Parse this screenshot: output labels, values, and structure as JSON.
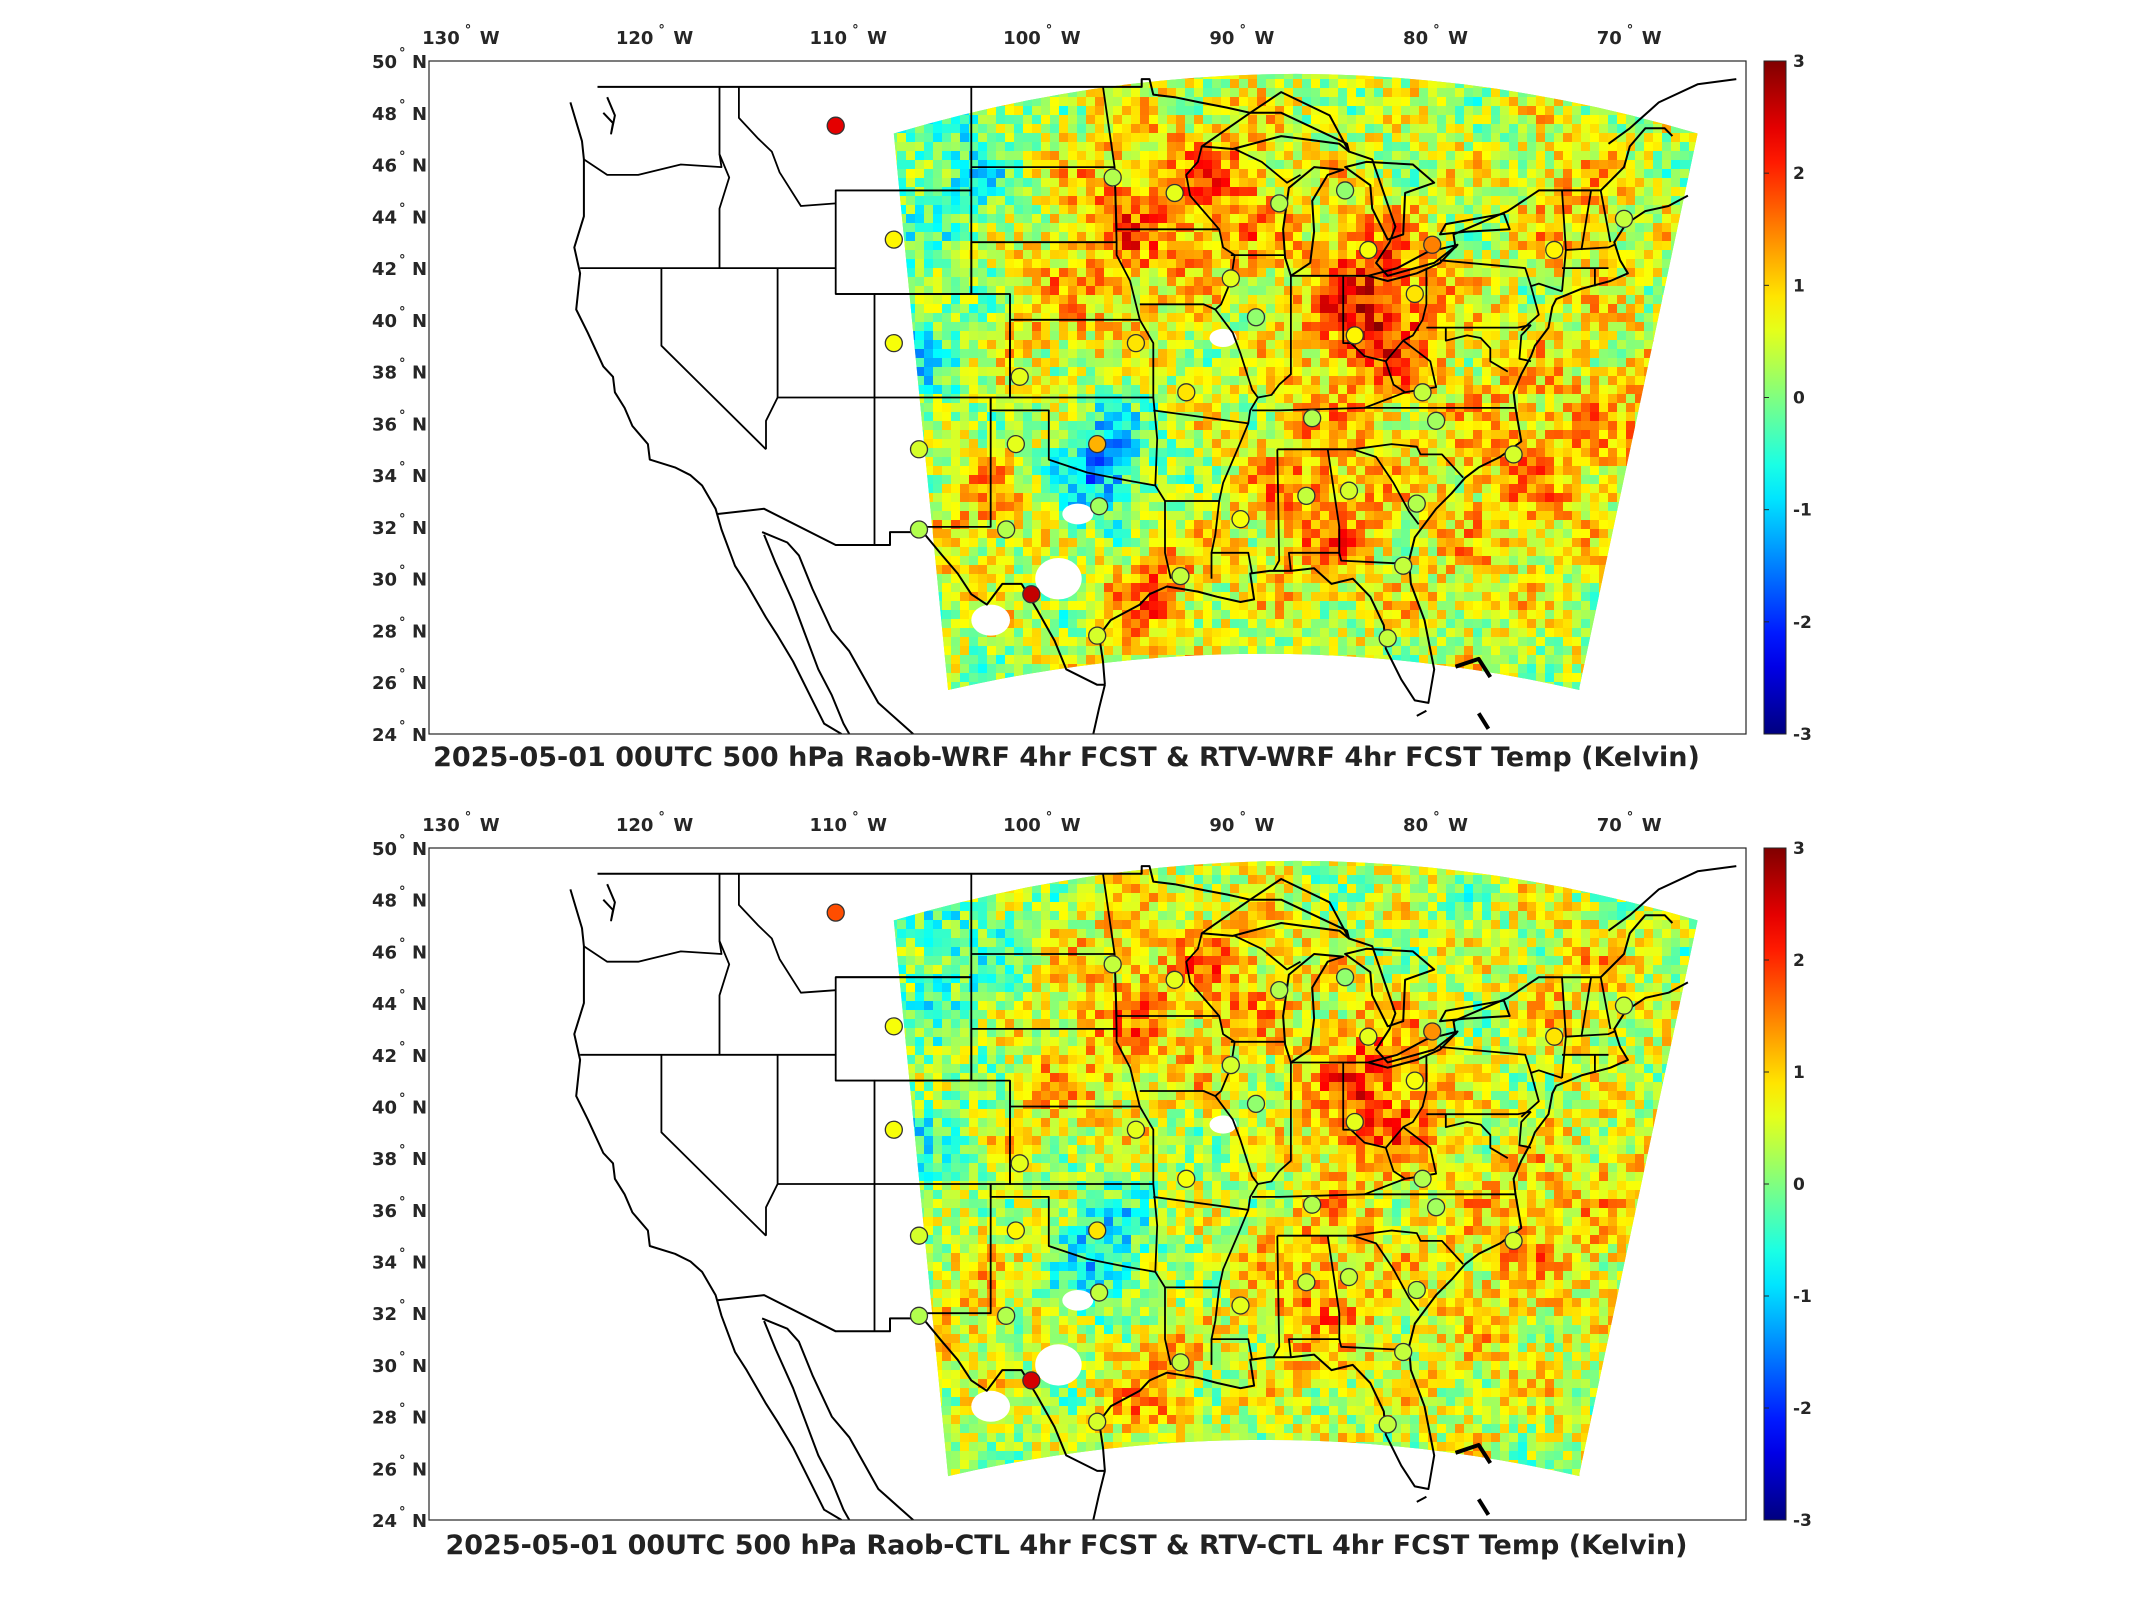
{
  "panels": [
    {
      "title": "2025-05-01 00UTC 500 hPa Raob-WRF 4hr FCST & RTV-WRF 4hr FCST Temp (Kelvin)",
      "stations": [
        {
          "lon": -111.0,
          "lat": 47.5,
          "value": 2.4
        },
        {
          "lon": -108.0,
          "lat": 43.1,
          "value": 0.8
        },
        {
          "lon": -96.7,
          "lat": 45.5,
          "value": 0.3
        },
        {
          "lon": -93.5,
          "lat": 44.9,
          "value": 0.6
        },
        {
          "lon": -108.0,
          "lat": 39.1,
          "value": 0.7
        },
        {
          "lon": -101.5,
          "lat": 37.8,
          "value": 0.6
        },
        {
          "lon": -95.5,
          "lat": 39.1,
          "value": 0.9
        },
        {
          "lon": -97.5,
          "lat": 35.2,
          "value": 1.2
        },
        {
          "lon": -106.7,
          "lat": 35.0,
          "value": 0.5
        },
        {
          "lon": -101.7,
          "lat": 35.2,
          "value": 0.6
        },
        {
          "lon": -106.7,
          "lat": 31.9,
          "value": 0.3
        },
        {
          "lon": -102.2,
          "lat": 31.9,
          "value": 0.3
        },
        {
          "lon": -97.4,
          "lat": 32.8,
          "value": 0.2
        },
        {
          "lon": -100.9,
          "lat": 29.4,
          "value": 2.6
        },
        {
          "lon": -97.5,
          "lat": 27.8,
          "value": 0.5
        },
        {
          "lon": -93.2,
          "lat": 30.1,
          "value": 0.4
        },
        {
          "lon": -92.9,
          "lat": 37.2,
          "value": 0.9
        },
        {
          "lon": -90.6,
          "lat": 41.6,
          "value": 0.6
        },
        {
          "lon": -89.3,
          "lat": 40.1,
          "value": 0.1
        },
        {
          "lon": -90.1,
          "lat": 32.3,
          "value": 0.7
        },
        {
          "lon": -86.7,
          "lat": 33.2,
          "value": 0.4
        },
        {
          "lon": -86.4,
          "lat": 36.2,
          "value": 0.3
        },
        {
          "lon": -84.5,
          "lat": 33.4,
          "value": 0.5
        },
        {
          "lon": -84.2,
          "lat": 39.4,
          "value": 0.8
        },
        {
          "lon": -83.5,
          "lat": 42.7,
          "value": 0.7
        },
        {
          "lon": -88.1,
          "lat": 44.5,
          "value": 0.3
        },
        {
          "lon": -84.7,
          "lat": 45.0,
          "value": 0.1
        },
        {
          "lon": -81.1,
          "lat": 41.0,
          "value": 0.9
        },
        {
          "lon": -80.2,
          "lat": 42.9,
          "value": 1.5
        },
        {
          "lon": -73.9,
          "lat": 42.7,
          "value": 0.8
        },
        {
          "lon": -70.3,
          "lat": 43.9,
          "value": 0.4
        },
        {
          "lon": -80.7,
          "lat": 37.2,
          "value": 0.4
        },
        {
          "lon": -80.0,
          "lat": 36.1,
          "value": 0.2
        },
        {
          "lon": -81.0,
          "lat": 32.9,
          "value": 0.3
        },
        {
          "lon": -81.7,
          "lat": 30.5,
          "value": 0.4
        },
        {
          "lon": -82.5,
          "lat": 27.7,
          "value": 0.4
        },
        {
          "lon": -76.0,
          "lat": 34.8,
          "value": 0.5
        }
      ]
    },
    {
      "title": "2025-05-01 00UTC 500 hPa Raob-CTL 4hr FCST & RTV-CTL 4hr FCST Temp (Kelvin)",
      "stations": [
        {
          "lon": -111.0,
          "lat": 47.5,
          "value": 1.8
        },
        {
          "lon": -108.0,
          "lat": 43.1,
          "value": 0.7
        },
        {
          "lon": -96.7,
          "lat": 45.5,
          "value": 0.4
        },
        {
          "lon": -93.5,
          "lat": 44.9,
          "value": 0.6
        },
        {
          "lon": -108.0,
          "lat": 39.1,
          "value": 0.7
        },
        {
          "lon": -101.5,
          "lat": 37.8,
          "value": 0.6
        },
        {
          "lon": -95.5,
          "lat": 39.1,
          "value": 0.6
        },
        {
          "lon": -97.5,
          "lat": 35.2,
          "value": 0.9
        },
        {
          "lon": -106.7,
          "lat": 35.0,
          "value": 0.5
        },
        {
          "lon": -101.7,
          "lat": 35.2,
          "value": 0.8
        },
        {
          "lon": -106.7,
          "lat": 31.9,
          "value": 0.3
        },
        {
          "lon": -102.2,
          "lat": 31.9,
          "value": 0.3
        },
        {
          "lon": -97.4,
          "lat": 32.8,
          "value": 0.4
        },
        {
          "lon": -100.9,
          "lat": 29.4,
          "value": 2.5
        },
        {
          "lon": -97.5,
          "lat": 27.8,
          "value": 0.5
        },
        {
          "lon": -93.2,
          "lat": 30.1,
          "value": 0.4
        },
        {
          "lon": -92.9,
          "lat": 37.2,
          "value": 0.7
        },
        {
          "lon": -90.6,
          "lat": 41.6,
          "value": 0.5
        },
        {
          "lon": -89.3,
          "lat": 40.1,
          "value": 0.1
        },
        {
          "lon": -90.1,
          "lat": 32.3,
          "value": 0.6
        },
        {
          "lon": -86.7,
          "lat": 33.2,
          "value": 0.4
        },
        {
          "lon": -86.4,
          "lat": 36.2,
          "value": 0.3
        },
        {
          "lon": -84.5,
          "lat": 33.4,
          "value": 0.4
        },
        {
          "lon": -84.2,
          "lat": 39.4,
          "value": 0.6
        },
        {
          "lon": -83.5,
          "lat": 42.7,
          "value": 0.6
        },
        {
          "lon": -88.1,
          "lat": 44.5,
          "value": 0.3
        },
        {
          "lon": -84.7,
          "lat": 45.0,
          "value": 0.1
        },
        {
          "lon": -81.1,
          "lat": 41.0,
          "value": 0.7
        },
        {
          "lon": -80.2,
          "lat": 42.9,
          "value": 1.4
        },
        {
          "lon": -73.9,
          "lat": 42.7,
          "value": 0.9
        },
        {
          "lon": -70.3,
          "lat": 43.9,
          "value": 0.4
        },
        {
          "lon": -80.7,
          "lat": 37.2,
          "value": 0.3
        },
        {
          "lon": -80.0,
          "lat": 36.1,
          "value": 0.2
        },
        {
          "lon": -81.0,
          "lat": 32.9,
          "value": 0.3
        },
        {
          "lon": -81.7,
          "lat": 30.5,
          "value": 0.4
        },
        {
          "lon": -82.5,
          "lat": 27.7,
          "value": 0.4
        },
        {
          "lon": -76.0,
          "lat": 34.8,
          "value": 0.5
        }
      ]
    }
  ],
  "map": {
    "lon_range": [
      -132,
      -64
    ],
    "lat_range": [
      24,
      50
    ],
    "lon_ticks": [
      -130,
      -120,
      -110,
      -100,
      -90,
      -80,
      -70
    ],
    "lat_ticks": [
      24,
      26,
      28,
      30,
      32,
      34,
      36,
      38,
      40,
      42,
      44,
      46,
      48,
      50
    ],
    "lon_tick_labels": [
      "130",
      "120",
      "110",
      "100",
      "90",
      "80",
      "70"
    ],
    "lat_tick_labels": [
      "24",
      "26",
      "28",
      "30",
      "32",
      "34",
      "36",
      "38",
      "40",
      "42",
      "44",
      "46",
      "48",
      "50"
    ],
    "lon_hemisphere": "W",
    "lat_hemisphere": "N",
    "degree_symbol": "°",
    "projection": "equirectangular",
    "land_outline_color": "#000000"
  },
  "colorbar": {
    "range": [
      -3,
      3
    ],
    "ticks": [
      -3,
      -2,
      -1,
      0,
      1,
      2,
      3
    ],
    "tick_labels": [
      "-3",
      "-2",
      "-1",
      "0",
      "1",
      "2",
      "3"
    ],
    "colormap": "jet"
  }
}
